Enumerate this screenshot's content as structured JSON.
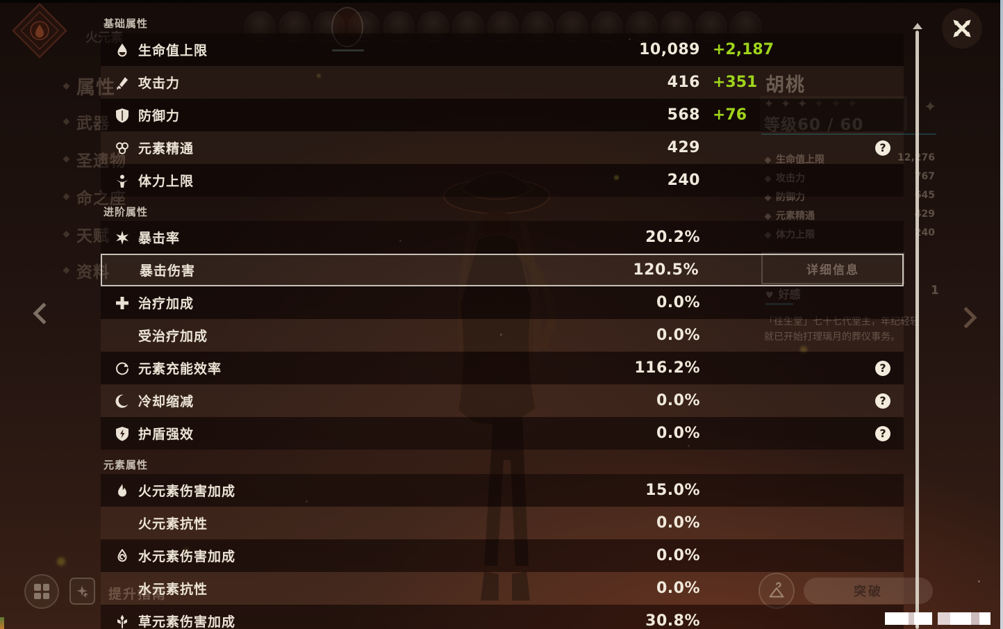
{
  "colors": {
    "bonus_green": "#9ed41c",
    "value_text": "#f0e9db",
    "highlight_border": "#d6cfc4",
    "scrollbar": "#d9d2c5",
    "row_dark": "rgba(8,3,2,0.46)",
    "row_light": "rgba(205,150,112,0.08)"
  },
  "overlay": {
    "sections": [
      {
        "title": "基础属性",
        "rows": [
          {
            "key": "hp",
            "icon": "hp-icon",
            "label": "生命值上限",
            "value": "10,089",
            "bonus": "+2,187",
            "shade": "dark"
          },
          {
            "key": "atk",
            "icon": "atk-icon",
            "label": "攻击力",
            "value": "416",
            "bonus": "+351",
            "shade": "light"
          },
          {
            "key": "def",
            "icon": "def-icon",
            "label": "防御力",
            "value": "568",
            "bonus": "+76",
            "shade": "dark"
          },
          {
            "key": "elemental-mastery",
            "icon": "elemental-mastery-icon",
            "label": "元素精通",
            "value": "429",
            "help": true,
            "shade": "light"
          },
          {
            "key": "stamina",
            "icon": "stamina-icon",
            "label": "体力上限",
            "value": "240",
            "shade": "dark"
          }
        ]
      },
      {
        "title": "进阶属性",
        "rows": [
          {
            "key": "crit-rate",
            "icon": "crit-rate-icon",
            "label": "暴击率",
            "value": "20.2%",
            "shade": "dark"
          },
          {
            "key": "crit-dmg",
            "icon": null,
            "label": "暴击伤害",
            "value": "120.5%",
            "highlight": true,
            "shade": "light"
          },
          {
            "key": "healing-bonus",
            "icon": "healing-icon",
            "label": "治疗加成",
            "value": "0.0%",
            "shade": "dark"
          },
          {
            "key": "incoming-healing",
            "icon": null,
            "label": "受治疗加成",
            "value": "0.0%",
            "shade": "light"
          },
          {
            "key": "energy-recharge",
            "icon": "energy-recharge-icon",
            "label": "元素充能效率",
            "value": "116.2%",
            "help": true,
            "shade": "dark"
          },
          {
            "key": "cd-reduction",
            "icon": "cd-reduction-icon",
            "label": "冷却缩减",
            "value": "0.0%",
            "help": true,
            "shade": "light"
          },
          {
            "key": "shield-strength",
            "icon": "shield-strength-icon",
            "label": "护盾强效",
            "value": "0.0%",
            "help": true,
            "shade": "dark"
          }
        ]
      },
      {
        "title": "元素属性",
        "rows": [
          {
            "key": "pyro-dmg",
            "icon": "pyro-icon",
            "label": "火元素伤害加成",
            "value": "15.0%",
            "shade": "dark"
          },
          {
            "key": "pyro-res",
            "icon": null,
            "label": "火元素抗性",
            "value": "0.0%",
            "shade": "light"
          },
          {
            "key": "hydro-dmg",
            "icon": "hydro-icon",
            "label": "水元素伤害加成",
            "value": "0.0%",
            "shade": "dark"
          },
          {
            "key": "hydro-res",
            "icon": null,
            "label": "水元素抗性",
            "value": "0.0%",
            "shade": "light"
          },
          {
            "key": "dendro-dmg",
            "icon": "dendro-icon",
            "label": "草元素伤害加成",
            "value": "30.8%",
            "shade": "dark"
          }
        ]
      }
    ]
  },
  "background": {
    "element_label": "火元素",
    "sidebar": [
      {
        "label": "属性",
        "active": true
      },
      {
        "label": "武器"
      },
      {
        "label": "圣遗物"
      },
      {
        "label": "命之座"
      },
      {
        "label": "天赋"
      },
      {
        "label": "资料"
      }
    ],
    "character": {
      "name": "胡桃",
      "level_label": "等级60 / 60",
      "mini_stats": [
        {
          "label": "生命值上限",
          "value": "12,276"
        },
        {
          "label": "攻击力",
          "value": "767"
        },
        {
          "label": "防御力",
          "value": "645"
        },
        {
          "label": "元素精通",
          "value": "429"
        },
        {
          "label": "体力上限",
          "value": "240"
        }
      ],
      "detail_button": "详细信息",
      "friendship_label": "好感",
      "friendship_level": "1",
      "description_line1": "「往生堂」七十七代堂主，年纪轻轻",
      "description_line2": "就已开始打理璃月的葬仪事务。"
    },
    "bottom": {
      "promote_label": "提升指南",
      "ascend_label": "突破"
    }
  }
}
